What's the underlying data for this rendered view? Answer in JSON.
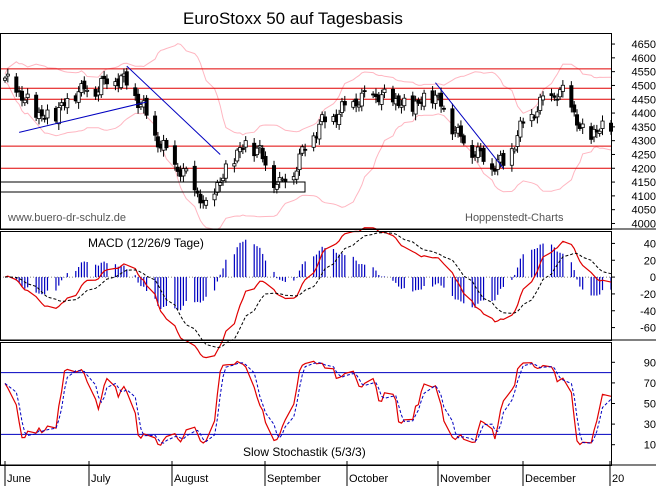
{
  "chart_data": [
    {
      "type": "candlestick",
      "title": "EuroStoxx 50 auf Tagesbasis",
      "watermark_left": "www.buero-dr-schulz.de",
      "watermark_right": "Hoppenstedt-Charts",
      "ylim": [
        3980,
        4690
      ],
      "y_ticks": [
        "4650",
        "4600",
        "4550",
        "4500",
        "4450",
        "4400",
        "4350",
        "4300",
        "4250",
        "4200",
        "4150",
        "4100",
        "4050",
        "4000"
      ],
      "horizontal_levels": [
        4560,
        4490,
        4450,
        4280,
        4200
      ],
      "trendlines": [
        {
          "from": [
            "2007-06-05",
            4330
          ],
          "to": [
            "2007-07-20",
            4440
          ]
        },
        {
          "from": [
            "2007-07-13",
            4570
          ],
          "to": [
            "2007-08-15",
            4250
          ]
        },
        {
          "from": [
            "2007-10-30",
            4510
          ],
          "to": [
            "2007-11-23",
            4200
          ]
        }
      ],
      "colors": {
        "candle": "#000000",
        "levels": "#e00000",
        "trend": "#0000c0",
        "bands": "#ffb6c1",
        "frame": "#000000"
      }
    },
    {
      "type": "macd",
      "label": "MACD (12/26/9 Tage)",
      "ylim": [
        -70,
        50
      ],
      "y_ticks": [
        "40",
        "20",
        "0",
        "-20",
        "-40",
        "-60"
      ],
      "colors": {
        "macd": "#e00000",
        "signal": "#000000",
        "histogram": "#0000c0"
      }
    },
    {
      "type": "stochastic",
      "label": "Slow Stochastik (5/3/3)",
      "ylim": [
        0,
        100
      ],
      "y_ticks": [
        "90",
        "70",
        "50",
        "30",
        "10"
      ],
      "levels": [
        80,
        20
      ],
      "colors": {
        "k": "#e00000",
        "d": "#0000c0",
        "levels": "#0000c0"
      }
    }
  ],
  "x_axis": {
    "months": [
      "June",
      "July",
      "August",
      "September",
      "October",
      "November",
      "December",
      "20"
    ]
  }
}
